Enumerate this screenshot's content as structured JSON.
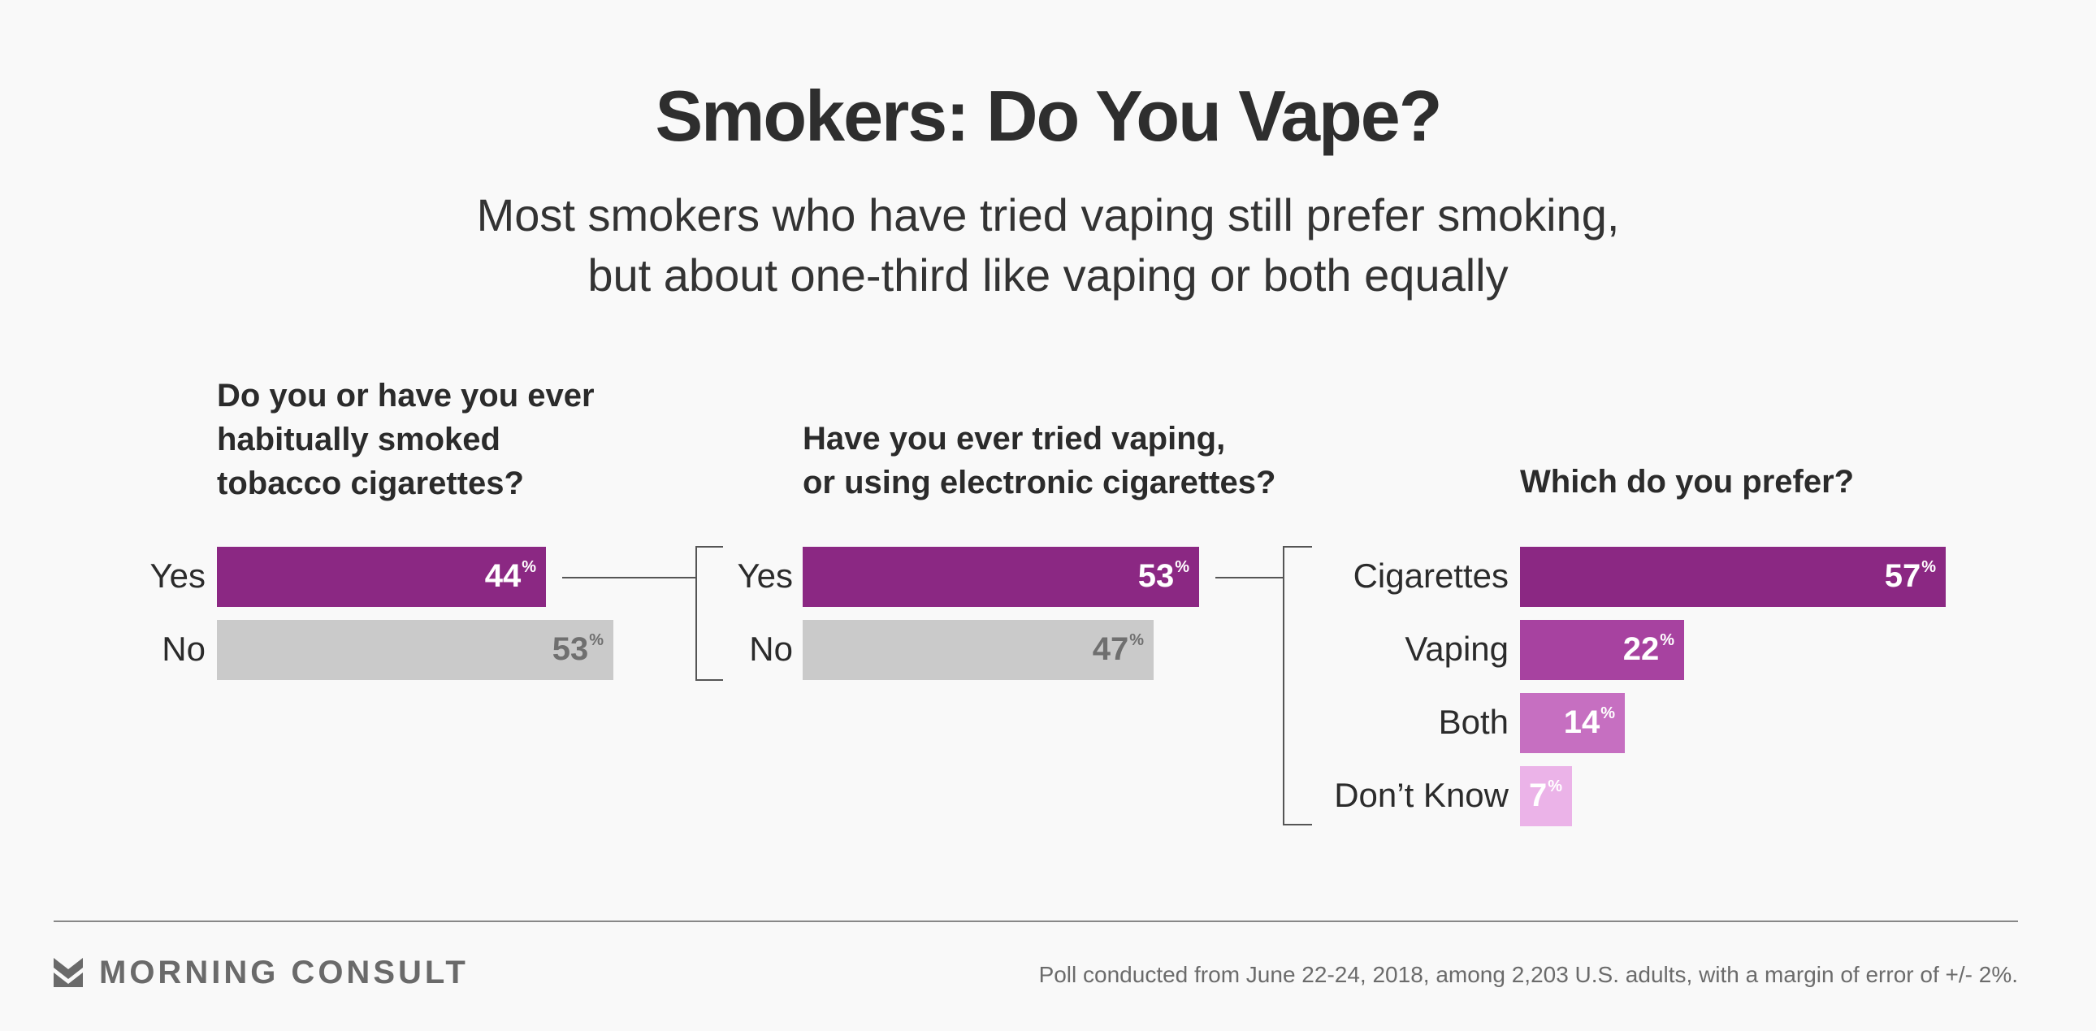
{
  "title": "Smokers: Do You Vape?",
  "subtitle": {
    "line1": "Most smokers who have tried vaping still prefer smoking,",
    "line2": "but about one-third like vaping or both equally"
  },
  "chart_data": [
    {
      "type": "bar",
      "title": "Do you or have you ever habitually smoked tobacco cigarettes?",
      "title_lines": [
        "Do you or have you ever",
        "habitually smoked",
        "tobacco cigarettes?"
      ],
      "categories": [
        "Yes",
        "No"
      ],
      "values": [
        44,
        53
      ],
      "value_suffix": "%",
      "colors": [
        "#8b2883",
        "#cacaca"
      ],
      "label_colors": [
        "#ffffff",
        "#6f6f6f"
      ]
    },
    {
      "type": "bar",
      "title": "Have you ever tried vaping, or using electronic cigarettes?",
      "title_lines": [
        "Have you ever tried vaping,",
        "or using electronic cigarettes?"
      ],
      "categories": [
        "Yes",
        "No"
      ],
      "values": [
        53,
        47
      ],
      "value_suffix": "%",
      "colors": [
        "#8b2883",
        "#cacaca"
      ],
      "label_colors": [
        "#ffffff",
        "#6f6f6f"
      ]
    },
    {
      "type": "bar",
      "title": "Which do you prefer?",
      "title_lines": [
        "Which do you prefer?"
      ],
      "categories": [
        "Cigarettes",
        "Vaping",
        "Both",
        "Don’t Know"
      ],
      "values": [
        57,
        22,
        14,
        7
      ],
      "value_suffix": "%",
      "colors": [
        "#8b2883",
        "#a742a0",
        "#c66fc1",
        "#ebb3e8"
      ],
      "label_colors": [
        "#ffffff",
        "#ffffff",
        "#ffffff",
        "#ffffff"
      ]
    }
  ],
  "footer": {
    "brand": "MORNING CONSULT",
    "logo_icon": "chevron-m-icon",
    "note": "Poll conducted from June 22-24, 2018, among 2,203 U.S. adults, with a margin of error of +/- 2%."
  }
}
